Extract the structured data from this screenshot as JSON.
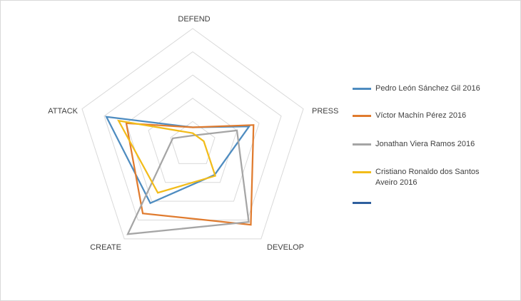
{
  "chart_data": {
    "type": "radar",
    "axes": [
      "DEFEND",
      "PRESS",
      "DEVELOP",
      "CREATE",
      "ATTACK"
    ],
    "rmax": 1.0,
    "grid_levels": 5,
    "series": [
      {
        "name": "Pedro León Sánchez Gil 2016",
        "color": "#4e8cc0",
        "values": [
          0.15,
          0.51,
          0.32,
          0.62,
          0.78
        ]
      },
      {
        "name": "Víctor Machín Pérez 2016",
        "color": "#e07b2e",
        "values": [
          0.15,
          0.55,
          0.85,
          0.73,
          0.6
        ]
      },
      {
        "name": "Jonathan Viera Ramos 2016",
        "color": "#a5a5a5",
        "values": [
          0.08,
          0.4,
          0.82,
          0.95,
          0.18
        ]
      },
      {
        "name": "Cristiano Ronaldo dos Santos Aveiro 2016",
        "color": "#f2bc1a",
        "values": [
          0.1,
          0.1,
          0.33,
          0.51,
          0.67
        ]
      },
      {
        "name": "",
        "color": "#2f5f9e",
        "values": []
      }
    ]
  }
}
